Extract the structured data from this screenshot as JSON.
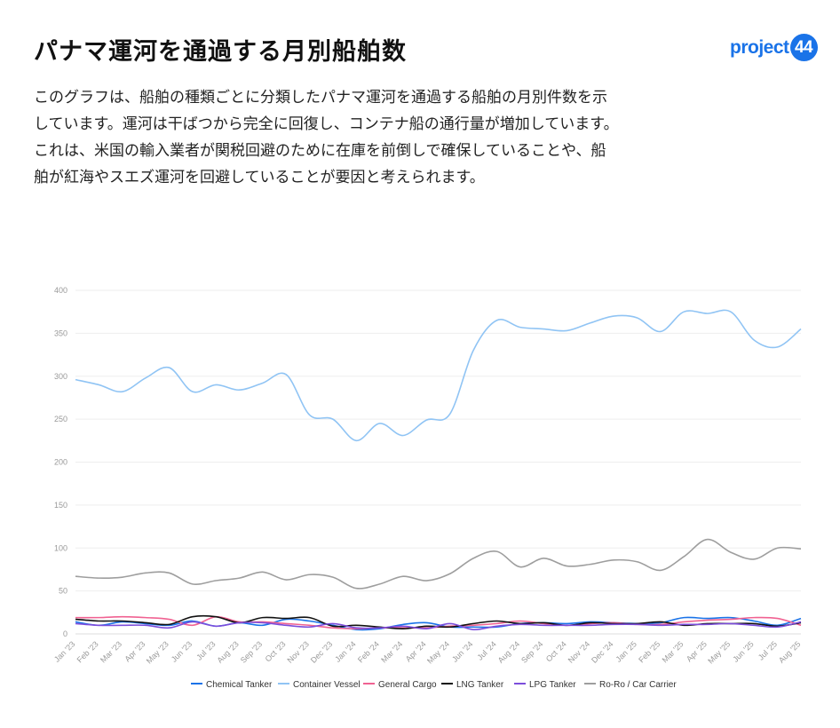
{
  "header": {
    "title": "パナマ運河を通過する月別船舶数",
    "logo_text": "project",
    "logo_badge": "44"
  },
  "description": {
    "lines": [
      "このグラフは、船舶の種類ごとに分類したパナマ運河を通過する船舶の月別件数を示",
      "しています。運河は干ばつから完全に回復し、コンテナ船の通行量が増加しています。",
      "これは、米国の輸入業者が関税回避のために在庫を前倒しで確保していることや、船",
      "舶が紅海やスエズ運河を回避していることが要因と考えられます。"
    ]
  },
  "chart_data": {
    "type": "line",
    "title": "",
    "xlabel": "",
    "ylabel": "",
    "ylim": [
      0,
      400
    ],
    "yticks": [
      0,
      50,
      100,
      150,
      200,
      250,
      300,
      350,
      400
    ],
    "grid": true,
    "legend_position": "bottom",
    "categories": [
      "Jan '23",
      "Feb '23",
      "Mar '23",
      "Apr '23",
      "May '23",
      "Jun '23",
      "Jul '23",
      "Aug '23",
      "Sep '23",
      "Oct '23",
      "Nov '23",
      "Dec '23",
      "Jan '24",
      "Feb '24",
      "Mar '24",
      "Apr '24",
      "May '24",
      "Jun '24",
      "Jul '24",
      "Aug '24",
      "Sep '24",
      "Oct '24",
      "Nov '24",
      "Dec '24",
      "Jan '25",
      "Feb '25",
      "Mar '25",
      "Apr '25",
      "May '25",
      "Jun '25",
      "Jul '25",
      "Aug '25"
    ],
    "series": [
      {
        "name": "Chemical Tanker",
        "color": "#1a73e8",
        "values": [
          14,
          10,
          14,
          12,
          10,
          15,
          9,
          13,
          10,
          17,
          15,
          10,
          5,
          6,
          11,
          13,
          8,
          8,
          8,
          12,
          13,
          12,
          14,
          13,
          12,
          13,
          19,
          18,
          19,
          15,
          10,
          18
        ]
      },
      {
        "name": "Container Vessel",
        "color": "#90c4f4",
        "values": [
          296,
          290,
          282,
          298,
          310,
          282,
          290,
          284,
          292,
          302,
          255,
          250,
          225,
          245,
          231,
          249,
          256,
          330,
          365,
          357,
          355,
          353,
          362,
          370,
          368,
          352,
          375,
          373,
          375,
          342,
          334,
          355
        ]
      },
      {
        "name": "General Cargo",
        "color": "#f06292",
        "values": [
          19,
          19,
          20,
          19,
          17,
          10,
          20,
          14,
          14,
          12,
          10,
          7,
          6,
          7,
          7,
          7,
          9,
          10,
          12,
          15,
          12,
          10,
          12,
          13,
          11,
          11,
          14,
          16,
          17,
          19,
          18,
          10
        ]
      },
      {
        "name": "LNG Tanker",
        "color": "#111111",
        "values": [
          17,
          15,
          15,
          13,
          11,
          20,
          20,
          13,
          19,
          18,
          19,
          9,
          10,
          8,
          6,
          9,
          8,
          12,
          15,
          12,
          13,
          10,
          13,
          12,
          12,
          14,
          10,
          12,
          12,
          12,
          9,
          13
        ]
      },
      {
        "name": "LPG Tanker",
        "color": "#7c4ddb",
        "values": [
          12,
          10,
          10,
          10,
          7,
          14,
          9,
          13,
          13,
          10,
          8,
          12,
          7,
          7,
          9,
          6,
          12,
          5,
          9,
          11,
          10,
          10,
          10,
          11,
          11,
          10,
          11,
          11,
          12,
          10,
          8,
          14
        ]
      },
      {
        "name": "Ro-Ro / Car Carrier",
        "color": "#9e9e9e",
        "values": [
          67,
          65,
          66,
          71,
          71,
          58,
          62,
          65,
          72,
          63,
          69,
          66,
          53,
          58,
          67,
          62,
          70,
          88,
          96,
          78,
          88,
          79,
          81,
          86,
          84,
          74,
          90,
          110,
          95,
          87,
          100,
          99
        ]
      }
    ]
  }
}
